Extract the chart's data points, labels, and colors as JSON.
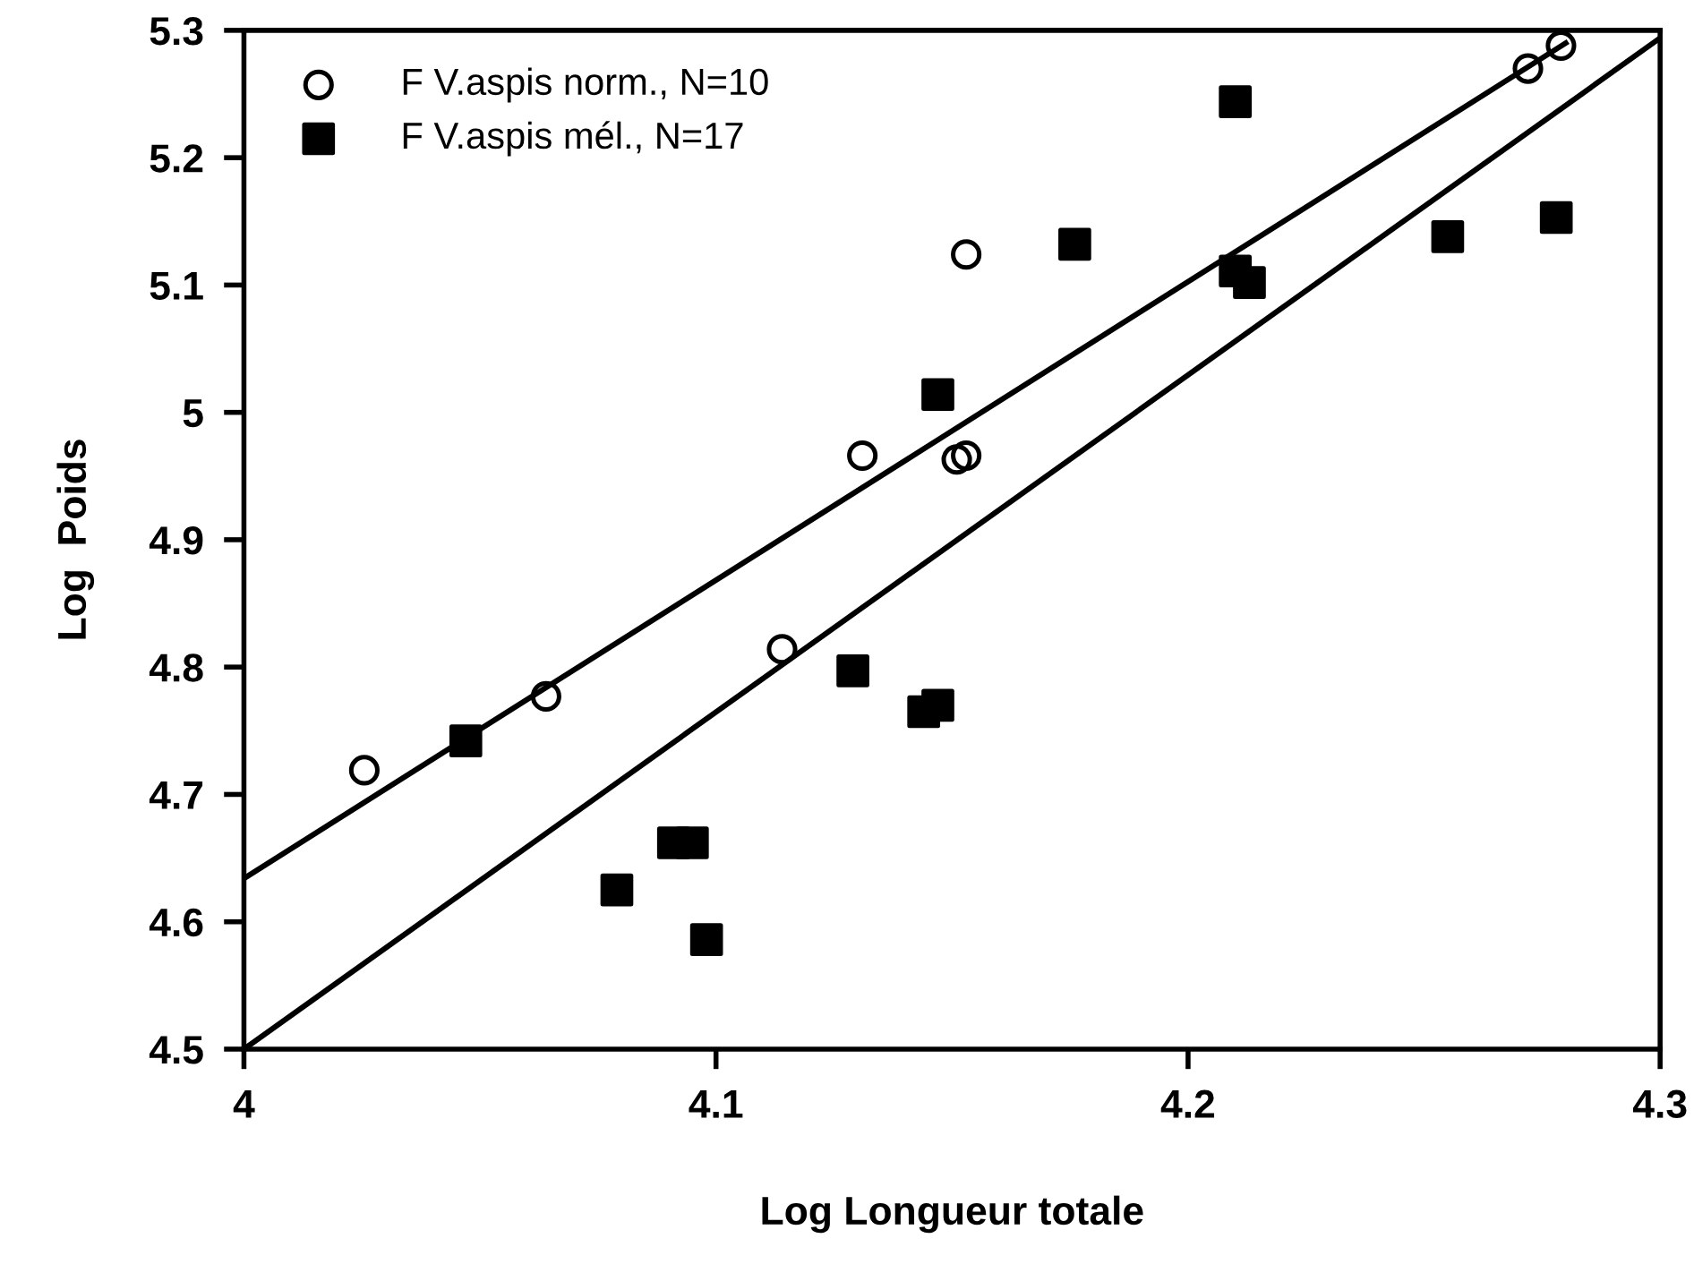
{
  "chart_data": {
    "type": "scatter",
    "xlabel": "Log Longueur totale",
    "ylabel": "Log  Poids",
    "xlim": [
      4,
      4.3
    ],
    "xticks": [
      4,
      4.1,
      4.2,
      4.3
    ],
    "ylim": [
      4.5,
      5.3
    ],
    "yticks": [
      4.5,
      4.6,
      4.7,
      4.8,
      4.9,
      5,
      5.1,
      5.2,
      5.3
    ],
    "grid": false,
    "legend": "top left",
    "series": [
      {
        "name": "F V.aspis norm., N=10",
        "marker": "circle",
        "color": "#000000",
        "x": [
          4.0255,
          4.064,
          4.114,
          4.131,
          4.151,
          4.153,
          4.153,
          4.272,
          4.279
        ],
        "values": [
          4.719,
          4.777,
          4.814,
          4.966,
          4.963,
          4.966,
          5.124,
          5.27,
          5.288
        ]
      },
      {
        "name": "F V.aspis mél., N=17",
        "marker": "square",
        "color": "#000000",
        "x": [
          4.047,
          4.079,
          4.091,
          4.095,
          4.098,
          4.129,
          4.144,
          4.147,
          4.147,
          4.176,
          4.21,
          4.21,
          4.213,
          4.255,
          4.278
        ],
        "values": [
          4.742,
          4.625,
          4.662,
          4.662,
          4.586,
          4.797,
          4.765,
          4.77,
          5.014,
          5.132,
          5.244,
          5.111,
          5.102,
          5.138,
          5.153
        ]
      },
      {
        "type": "line",
        "marker": "none",
        "line_style": "solid",
        "color": "#000000",
        "x": [
          4,
          4.28
        ],
        "values": [
          4.634,
          5.29
        ]
      },
      {
        "type": "line",
        "marker": "none",
        "line_style": "solid",
        "color": "#000000",
        "x": [
          4,
          4.3
        ],
        "values": [
          4.5,
          5.294
        ]
      }
    ]
  }
}
